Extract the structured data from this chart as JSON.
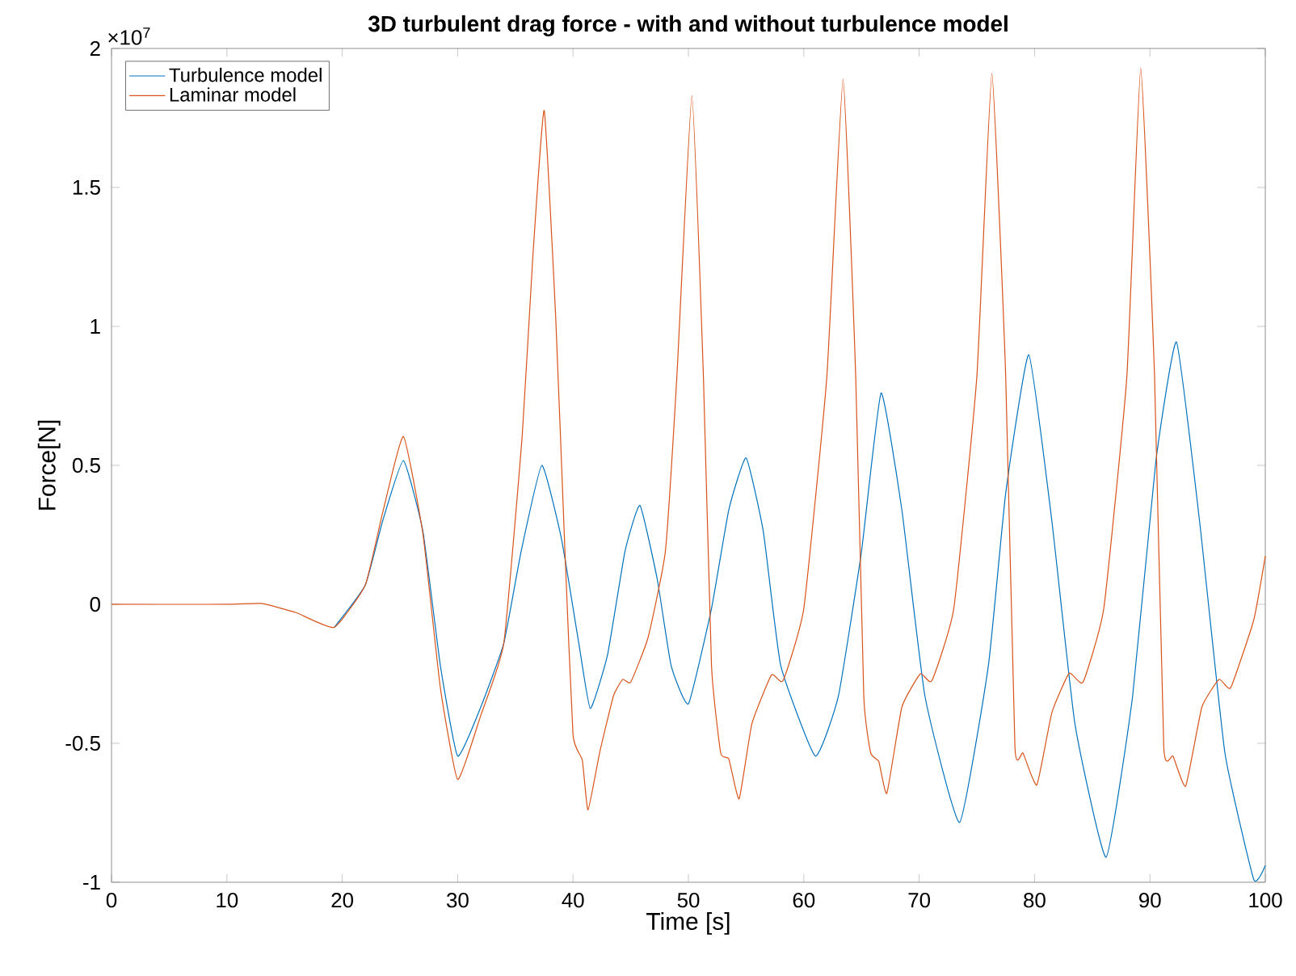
{
  "chart_data": {
    "type": "line",
    "title": "3D turbulent drag force - with and without turbulence model",
    "xlabel": "Time [s]",
    "ylabel": "Force[N]",
    "annotations": [
      "×10$^{7}$"
    ],
    "xlim": [
      0,
      100
    ],
    "xticks": [
      0,
      10,
      20,
      30,
      40,
      50,
      60,
      70,
      80,
      90,
      100
    ],
    "ylim": [
      -1,
      2
    ],
    "yticks": [
      -1,
      -0.5,
      0,
      0.5,
      1,
      1.5,
      2
    ],
    "legend": "top left",
    "series": [
      {
        "name": "Turbulence model",
        "color": "#0072bd",
        "x": [
          19.3,
          22,
          23.5,
          25.3,
          27,
          28.5,
          30,
          32,
          34,
          35.5,
          37.3,
          39,
          40.5,
          41.5,
          43,
          44.5,
          45.8,
          47.3,
          48.5,
          50,
          52,
          53.5,
          55,
          56.5,
          58,
          61,
          63,
          65,
          66.7,
          68.5,
          70.5,
          73.5,
          76,
          77.5,
          79.5,
          81.5,
          83.5,
          86.2,
          88.5,
          90.5,
          92.3,
          94.3,
          96.5,
          99,
          100
        ],
        "values": [
          -0.083,
          0.07,
          0.3,
          0.517,
          0.26,
          -0.22,
          -0.546,
          -0.37,
          -0.14,
          0.19,
          0.5,
          0.235,
          -0.14,
          -0.375,
          -0.18,
          0.19,
          0.356,
          0.09,
          -0.22,
          -0.358,
          -0.015,
          0.34,
          0.527,
          0.26,
          -0.22,
          -0.546,
          -0.33,
          0.19,
          0.76,
          0.34,
          -0.33,
          -0.785,
          -0.22,
          0.4,
          0.898,
          0.3,
          -0.43,
          -0.91,
          -0.33,
          0.51,
          0.944,
          0.3,
          -0.535,
          -0.99,
          -0.94
        ]
      },
      {
        "name": "Laminar model",
        "color": "#d95319",
        "x": [
          0,
          10,
          13,
          16,
          19.3,
          22,
          23.5,
          25.3,
          27,
          28.5,
          30,
          32,
          34,
          35.6,
          36.5,
          37.5,
          38.5,
          39.3,
          40,
          40.8,
          41.3,
          42.3,
          43.5,
          44.3,
          45,
          46.5,
          48,
          49,
          50.3,
          51.3,
          52,
          52.8,
          53.5,
          54.4,
          55.5,
          57.2,
          58.2,
          60,
          62,
          63.4,
          64.5,
          65.2,
          65.8,
          66.5,
          67.2,
          68.5,
          70.1,
          71.1,
          73,
          75,
          76.3,
          77.5,
          78.3,
          79,
          80.2,
          81.5,
          83,
          84.2,
          86,
          88,
          89.2,
          90.4,
          91.2,
          92,
          93.1,
          94.5,
          96,
          97,
          99,
          100
        ],
        "values": [
          0,
          0,
          0.003,
          -0.03,
          -0.083,
          0.07,
          0.33,
          0.604,
          0.25,
          -0.3,
          -0.63,
          -0.4,
          -0.14,
          0.61,
          1.24,
          1.777,
          1.03,
          0.19,
          -0.47,
          -0.56,
          -0.74,
          -0.535,
          -0.33,
          -0.27,
          -0.28,
          -0.12,
          0.19,
          0.82,
          1.83,
          0.82,
          -0.22,
          -0.535,
          -0.556,
          -0.7,
          -0.43,
          -0.254,
          -0.275,
          -0.015,
          0.82,
          1.89,
          0.82,
          -0.33,
          -0.535,
          -0.565,
          -0.68,
          -0.37,
          -0.25,
          -0.275,
          -0.015,
          0.82,
          1.91,
          0.82,
          -0.515,
          -0.535,
          -0.65,
          -0.39,
          -0.248,
          -0.28,
          -0.015,
          0.82,
          1.93,
          0.82,
          -0.515,
          -0.546,
          -0.654,
          -0.37,
          -0.27,
          -0.3,
          -0.056,
          0.173
        ]
      }
    ]
  }
}
